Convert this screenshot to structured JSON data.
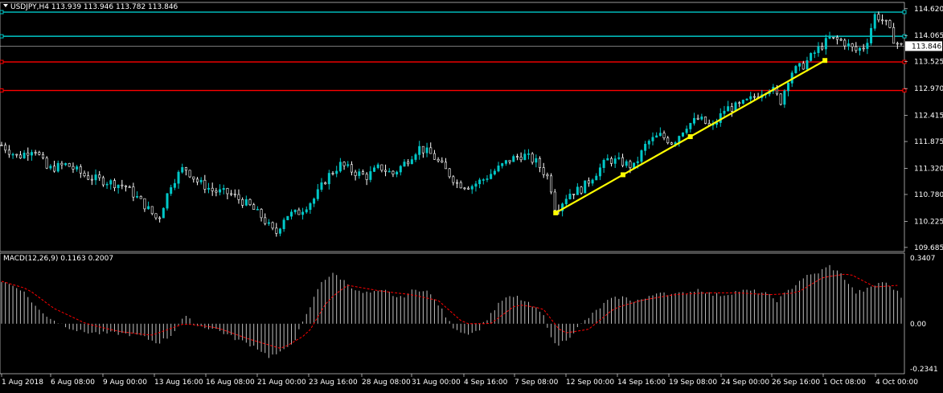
{
  "symbol_header": "USDJPY,H4  113.939 113.946 113.782 113.846",
  "macd_header": "MACD(12,26,9) 0.1163 0.2007",
  "colors": {
    "background": "#000000",
    "bull": "#00c8c8",
    "bear": "#ffffff",
    "grid": "#2f4f4f",
    "support_line": "#ff0000",
    "resistance_line": "#00c8c8",
    "trendline": "#ffff00",
    "macd_hist": "#c0c0c0",
    "macd_signal": "#ff0000",
    "bid_line": "#c0c0c0"
  },
  "chart_data": [
    {
      "type": "candlestick",
      "title": "USDJPY,H4  113.939 113.946 113.782 113.846",
      "price_ticks": [
        "114.620",
        "114.065",
        "113.525",
        "112.970",
        "112.415",
        "111.875",
        "111.320",
        "110.780",
        "110.225",
        "109.685"
      ],
      "current_price": "113.846",
      "ylim": [
        109.6,
        114.75
      ],
      "time_labels": [
        "1 Aug 2018",
        "6 Aug 08:00",
        "9 Aug 00:00",
        "13 Aug 16:00",
        "16 Aug 08:00",
        "21 Aug 00:00",
        "23 Aug 16:00",
        "28 Aug 08:00",
        "31 Aug 00:00",
        "4 Sep 16:00",
        "7 Sep 08:00",
        "12 Sep 00:00",
        "14 Sep 16:00",
        "19 Sep 08:00",
        "24 Sep 00:00",
        "26 Sep 16:00",
        "1 Oct 08:00",
        "4 Oct 00:00"
      ],
      "bar_count": 240,
      "horizontal_levels": [
        {
          "price": 114.55,
          "color": "#00c8c8"
        },
        {
          "price": 114.05,
          "color": "#00c8c8"
        },
        {
          "price": 113.52,
          "color": "#ff0000"
        },
        {
          "price": 112.93,
          "color": "#ff0000"
        }
      ],
      "trendline": {
        "from_bar": 170,
        "from_price": 110.4,
        "to_bar": 240,
        "to_price": 113.55
      },
      "anchors": [
        [
          0,
          111.8
        ],
        [
          5,
          111.55
        ],
        [
          10,
          111.75
        ],
        [
          14,
          111.3
        ],
        [
          20,
          111.4
        ],
        [
          26,
          111.15
        ],
        [
          32,
          111.05
        ],
        [
          38,
          110.95
        ],
        [
          44,
          110.55
        ],
        [
          48,
          110.25
        ],
        [
          52,
          111.0
        ],
        [
          56,
          111.35
        ],
        [
          60,
          111.05
        ],
        [
          65,
          110.85
        ],
        [
          70,
          110.8
        ],
        [
          76,
          110.55
        ],
        [
          80,
          110.3
        ],
        [
          84,
          109.95
        ],
        [
          87,
          110.35
        ],
        [
          91,
          110.4
        ],
        [
          96,
          110.7
        ],
        [
          100,
          111.15
        ],
        [
          104,
          111.4
        ],
        [
          108,
          111.25
        ],
        [
          112,
          111.15
        ],
        [
          116,
          111.35
        ],
        [
          120,
          111.2
        ],
        [
          124,
          111.45
        ],
        [
          128,
          111.75
        ],
        [
          132,
          111.6
        ],
        [
          136,
          111.3
        ],
        [
          140,
          111.0
        ],
        [
          144,
          110.95
        ],
        [
          148,
          111.1
        ],
        [
          152,
          111.3
        ],
        [
          156,
          111.5
        ],
        [
          160,
          111.6
        ],
        [
          164,
          111.45
        ],
        [
          168,
          111.1
        ],
        [
          170,
          110.45
        ],
        [
          174,
          110.8
        ],
        [
          178,
          110.9
        ],
        [
          182,
          111.2
        ],
        [
          186,
          111.5
        ],
        [
          190,
          111.45
        ],
        [
          194,
          111.35
        ],
        [
          198,
          111.85
        ],
        [
          202,
          112.0
        ],
        [
          206,
          111.85
        ],
        [
          210,
          112.2
        ],
        [
          214,
          112.35
        ],
        [
          218,
          112.15
        ],
        [
          222,
          112.55
        ],
        [
          226,
          112.6
        ],
        [
          230,
          112.75
        ],
        [
          233,
          112.9
        ],
        [
          236,
          113.0
        ],
        [
          239,
          112.7
        ],
        [
          242,
          113.3
        ],
        [
          246,
          113.45
        ],
        [
          250,
          113.75
        ],
        [
          254,
          114.0
        ],
        [
          258,
          113.95
        ],
        [
          262,
          113.75
        ],
        [
          265,
          113.85
        ],
        [
          268,
          114.5
        ],
        [
          271,
          114.35
        ],
        [
          274,
          113.95
        ],
        [
          276,
          113.85
        ]
      ],
      "x_data_max": 276
    },
    {
      "type": "bar",
      "title": "MACD(12,26,9) 0.1163 0.2007",
      "ticks": [
        "0.3407",
        "0.00",
        "-0.2341"
      ],
      "ylim": [
        -0.2341,
        0.3407
      ],
      "anchors_hist": [
        [
          0,
          0.22
        ],
        [
          6,
          0.18
        ],
        [
          12,
          0.06
        ],
        [
          18,
          0.0
        ],
        [
          24,
          -0.04
        ],
        [
          30,
          -0.05
        ],
        [
          36,
          -0.05
        ],
        [
          42,
          -0.06
        ],
        [
          48,
          -0.1
        ],
        [
          52,
          -0.06
        ],
        [
          56,
          0.04
        ],
        [
          60,
          -0.01
        ],
        [
          66,
          -0.03
        ],
        [
          72,
          -0.08
        ],
        [
          78,
          -0.12
        ],
        [
          82,
          -0.17
        ],
        [
          86,
          -0.15
        ],
        [
          90,
          -0.08
        ],
        [
          94,
          0.06
        ],
        [
          98,
          0.22
        ],
        [
          102,
          0.26
        ],
        [
          106,
          0.21
        ],
        [
          110,
          0.16
        ],
        [
          114,
          0.16
        ],
        [
          118,
          0.17
        ],
        [
          122,
          0.13
        ],
        [
          126,
          0.17
        ],
        [
          130,
          0.18
        ],
        [
          134,
          0.1
        ],
        [
          138,
          -0.01
        ],
        [
          142,
          -0.05
        ],
        [
          146,
          -0.04
        ],
        [
          150,
          0.05
        ],
        [
          154,
          0.13
        ],
        [
          158,
          0.14
        ],
        [
          162,
          0.1
        ],
        [
          166,
          0.05
        ],
        [
          170,
          -0.12
        ],
        [
          174,
          -0.07
        ],
        [
          178,
          0.0
        ],
        [
          182,
          0.06
        ],
        [
          186,
          0.12
        ],
        [
          190,
          0.14
        ],
        [
          194,
          0.12
        ],
        [
          198,
          0.13
        ],
        [
          202,
          0.17
        ],
        [
          206,
          0.15
        ],
        [
          210,
          0.16
        ],
        [
          214,
          0.18
        ],
        [
          218,
          0.15
        ],
        [
          222,
          0.15
        ],
        [
          226,
          0.17
        ],
        [
          230,
          0.17
        ],
        [
          234,
          0.16
        ],
        [
          238,
          0.12
        ],
        [
          242,
          0.18
        ],
        [
          246,
          0.24
        ],
        [
          250,
          0.26
        ],
        [
          254,
          0.3
        ],
        [
          258,
          0.25
        ],
        [
          262,
          0.16
        ],
        [
          266,
          0.18
        ],
        [
          270,
          0.22
        ],
        [
          274,
          0.18
        ],
        [
          276,
          0.14
        ]
      ],
      "anchors_signal": [
        [
          0,
          0.22
        ],
        [
          8,
          0.18
        ],
        [
          16,
          0.08
        ],
        [
          26,
          0.0
        ],
        [
          36,
          -0.04
        ],
        [
          46,
          -0.06
        ],
        [
          56,
          0.0
        ],
        [
          66,
          -0.02
        ],
        [
          76,
          -0.08
        ],
        [
          86,
          -0.13
        ],
        [
          94,
          -0.05
        ],
        [
          100,
          0.12
        ],
        [
          106,
          0.2
        ],
        [
          116,
          0.17
        ],
        [
          126,
          0.15
        ],
        [
          134,
          0.12
        ],
        [
          142,
          0.0
        ],
        [
          150,
          0.0
        ],
        [
          158,
          0.1
        ],
        [
          166,
          0.08
        ],
        [
          172,
          -0.05
        ],
        [
          180,
          -0.03
        ],
        [
          188,
          0.08
        ],
        [
          196,
          0.12
        ],
        [
          206,
          0.15
        ],
        [
          216,
          0.16
        ],
        [
          226,
          0.16
        ],
        [
          236,
          0.15
        ],
        [
          244,
          0.16
        ],
        [
          252,
          0.24
        ],
        [
          260,
          0.26
        ],
        [
          268,
          0.19
        ],
        [
          276,
          0.2
        ]
      ]
    }
  ]
}
